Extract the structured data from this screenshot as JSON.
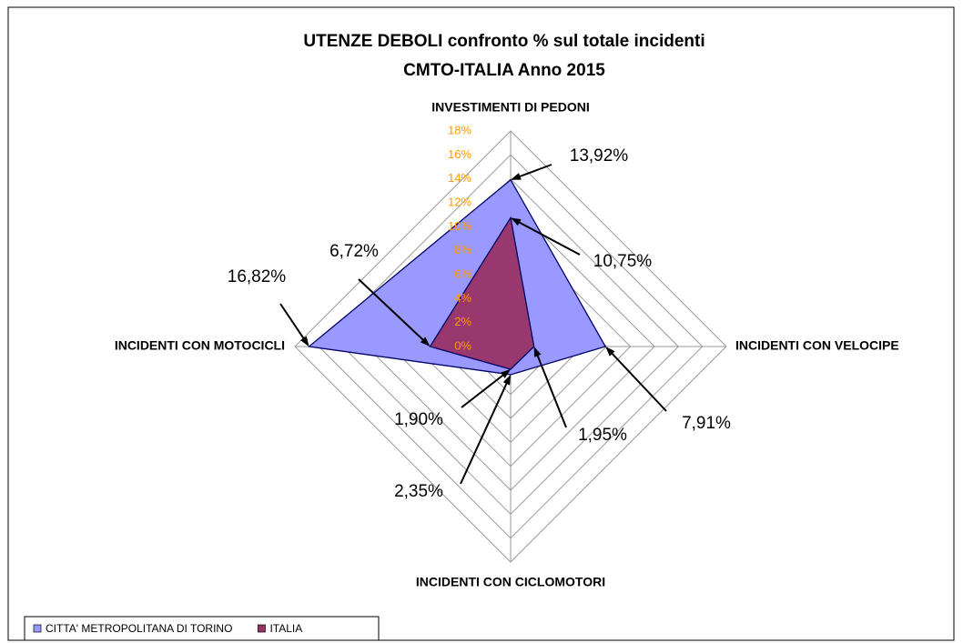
{
  "chart_data": {
    "type": "radar",
    "title": [
      "UTENZE DEBOLI confronto % sul totale incidenti",
      "CMTO-ITALIA Anno 2015"
    ],
    "categories": [
      "INVESTIMENTI DI PEDONI",
      "INCIDENTI CON VELOCIPE",
      "INCIDENTI CON CICLOMOTORI",
      "INCIDENTI CON MOTOCICLI"
    ],
    "series": [
      {
        "name": "CITTA' METROPOLITANA DI TORINO",
        "color": "#9999ff",
        "values": [
          13.92,
          7.91,
          2.35,
          16.82
        ],
        "value_labels": [
          "13,92%",
          "7,91%",
          "2,35%",
          "16,82%"
        ]
      },
      {
        "name": "ITALIA",
        "color": "#993366",
        "values": [
          10.75,
          1.95,
          1.9,
          6.72
        ],
        "value_labels": [
          "10,75%",
          "1,95%",
          "1,90%",
          "6,72%"
        ]
      }
    ],
    "ylim": [
      0,
      18
    ],
    "yticks": [
      {
        "value": 0,
        "label": "0%"
      },
      {
        "value": 2,
        "label": "2%"
      },
      {
        "value": 4,
        "label": "4%"
      },
      {
        "value": 6,
        "label": "6%"
      },
      {
        "value": 8,
        "label": "8%"
      },
      {
        "value": 10,
        "label": "10%"
      },
      {
        "value": 12,
        "label": "12%"
      },
      {
        "value": 14,
        "label": "14%"
      },
      {
        "value": 16,
        "label": "16%"
      },
      {
        "value": 18,
        "label": "18%"
      }
    ],
    "grid": true,
    "legend": "bottom-left"
  }
}
